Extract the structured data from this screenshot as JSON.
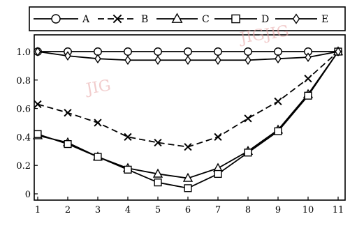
{
  "chart_data": {
    "type": "line",
    "title": "",
    "xlabel": "",
    "ylabel": "",
    "x": [
      1,
      2,
      3,
      4,
      5,
      6,
      7,
      8,
      9,
      10,
      11
    ],
    "xlim": [
      1,
      11
    ],
    "ylim": [
      0,
      1.0
    ],
    "x_ticks": [
      "1",
      "2",
      "3",
      "4",
      "5",
      "6",
      "7",
      "8",
      "9",
      "10",
      "11"
    ],
    "y_ticks": [
      "0",
      "0.2",
      "0.4",
      "0.6",
      "0.8",
      "1.0"
    ],
    "grid": false,
    "legend": {
      "placement": "top",
      "entries": [
        "A",
        "B",
        "C",
        "D",
        "E"
      ]
    },
    "series": [
      {
        "name": "A",
        "marker": "circle",
        "dash": "solid",
        "color": "#000000",
        "values": [
          1.0,
          1.0,
          1.0,
          1.0,
          1.0,
          1.0,
          1.0,
          1.0,
          1.0,
          1.0,
          1.0
        ]
      },
      {
        "name": "B",
        "marker": "x",
        "dash": "dashed",
        "color": "#000000",
        "values": [
          0.63,
          0.57,
          0.5,
          0.4,
          0.36,
          0.33,
          0.4,
          0.53,
          0.65,
          0.81,
          1.0
        ]
      },
      {
        "name": "C",
        "marker": "triangle",
        "dash": "solid",
        "color": "#000000",
        "values": [
          0.41,
          0.36,
          0.26,
          0.18,
          0.14,
          0.11,
          0.18,
          0.3,
          0.45,
          0.7,
          1.0
        ]
      },
      {
        "name": "D",
        "marker": "square",
        "dash": "solid",
        "color": "#000000",
        "values": [
          0.42,
          0.35,
          0.26,
          0.17,
          0.08,
          0.04,
          0.14,
          0.29,
          0.44,
          0.69,
          1.0
        ]
      },
      {
        "name": "E",
        "marker": "diamond",
        "dash": "solid",
        "color": "#000000",
        "values": [
          1.0,
          0.97,
          0.95,
          0.94,
          0.94,
          0.94,
          0.94,
          0.94,
          0.95,
          0.96,
          1.0
        ]
      }
    ]
  },
  "watermarks": [
    "JIG",
    "JIG",
    "JIG"
  ]
}
